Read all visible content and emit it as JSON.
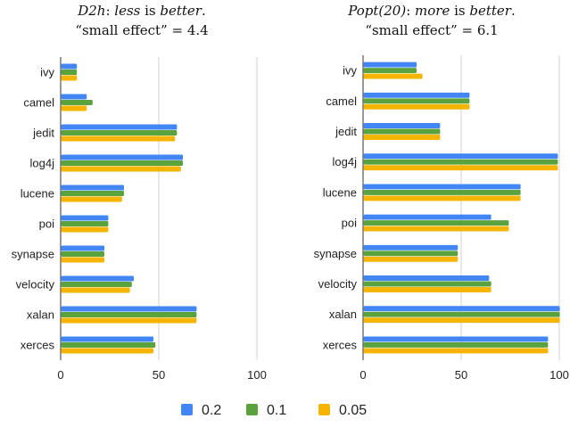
{
  "chart_data": [
    {
      "type": "bar",
      "orientation": "horizontal",
      "title_lines": [
        [
          {
            "t": "D2h",
            "i": true
          },
          {
            "t": ": ",
            "i": false
          },
          {
            "t": "less",
            "i": true
          },
          {
            "t": " is ",
            "i": false
          },
          {
            "t": "better",
            "i": true
          },
          {
            "t": ".",
            "i": false
          }
        ],
        [
          {
            "t": "“small effect” = 4.4",
            "i": false
          }
        ]
      ],
      "categories": [
        "ivy",
        "camel",
        "jedit",
        "log4j",
        "lucene",
        "poi",
        "synapse",
        "velocity",
        "xalan",
        "xerces"
      ],
      "series": [
        {
          "name": "0.2",
          "color": "#4285f4",
          "values": [
            8,
            13,
            59,
            62,
            32,
            24,
            22,
            37,
            69,
            47
          ]
        },
        {
          "name": "0.1",
          "color": "#5aa23e",
          "values": [
            8,
            16,
            59,
            62,
            32,
            24,
            22,
            36,
            69,
            48
          ]
        },
        {
          "name": "0.05",
          "color": "#f4b400",
          "values": [
            8,
            13,
            58,
            61,
            31,
            24,
            22,
            35,
            69,
            47
          ]
        }
      ],
      "xlim": [
        0,
        100
      ],
      "xticks": [
        0,
        50,
        100
      ],
      "grid": true
    },
    {
      "type": "bar",
      "orientation": "horizontal",
      "title_lines": [
        [
          {
            "t": "Popt(20)",
            "i": true
          },
          {
            "t": ": ",
            "i": false
          },
          {
            "t": "more",
            "i": true
          },
          {
            "t": " is ",
            "i": false
          },
          {
            "t": "better",
            "i": true
          },
          {
            "t": ".",
            "i": false
          }
        ],
        [
          {
            "t": "“small effect” = 6.1",
            "i": false
          }
        ]
      ],
      "categories": [
        "ivy",
        "camel",
        "jedit",
        "log4j",
        "lucene",
        "poi",
        "synapse",
        "velocity",
        "xalan",
        "xerces"
      ],
      "series": [
        {
          "name": "0.2",
          "color": "#4285f4",
          "values": [
            27,
            54,
            39,
            99,
            80,
            65,
            48,
            64,
            100,
            94
          ]
        },
        {
          "name": "0.1",
          "color": "#5aa23e",
          "values": [
            27,
            54,
            39,
            99,
            80,
            74,
            48,
            65,
            100,
            94
          ]
        },
        {
          "name": "0.05",
          "color": "#f4b400",
          "values": [
            30,
            54,
            39,
            99,
            80,
            74,
            48,
            65,
            100,
            94
          ]
        }
      ],
      "xlim": [
        0,
        100
      ],
      "xticks": [
        0,
        50,
        100
      ],
      "grid": true
    }
  ],
  "legend": {
    "position": "bottom",
    "items": [
      {
        "label": "0.2",
        "color": "#4285f4"
      },
      {
        "label": "0.1",
        "color": "#5aa23e"
      },
      {
        "label": "0.05",
        "color": "#f4b400"
      }
    ]
  }
}
